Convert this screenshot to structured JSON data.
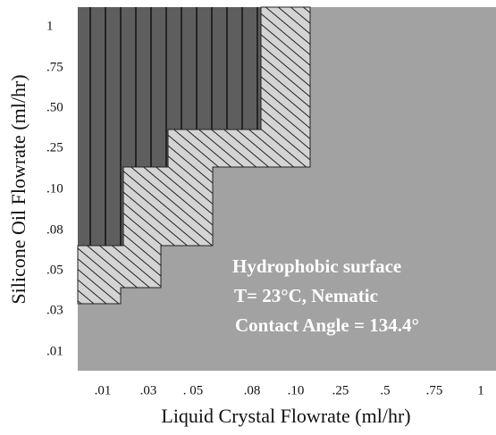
{
  "x_axis": {
    "label": "Liquid Crystal Flowrate (ml/hr)",
    "ticks": [
      ".01",
      ".03",
      ". 05",
      ".08",
      ".10",
      ".25",
      ".5",
      ".75",
      "1"
    ]
  },
  "y_axis": {
    "label": "Silicone Oil Flowrate (ml/hr)",
    "ticks": [
      "1",
      ".75",
      ".50",
      ".25",
      ".10",
      ".08",
      ".05",
      ".03",
      ".01"
    ]
  },
  "annotations": [
    "Hydrophobic surface",
    "T= 23°C, Nematic",
    "Contact Angle = 134.4°"
  ]
}
